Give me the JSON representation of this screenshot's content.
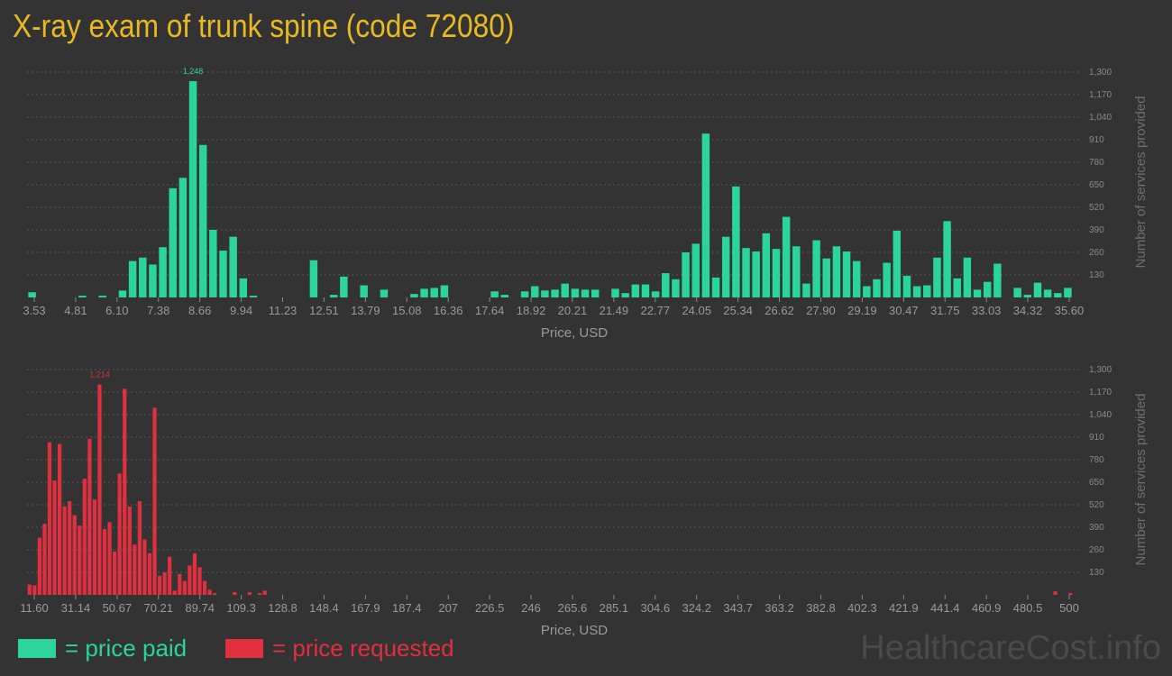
{
  "title": "X-ray exam of trunk spine (code 72080)",
  "watermark": "HealthcareCost.info",
  "legend": {
    "paid_label": "= price paid",
    "requested_label": "= price requested",
    "paid_color": "#2ad49a",
    "requested_color": "#e0303f"
  },
  "chart_data": [
    {
      "type": "bar",
      "name": "price paid",
      "color": "#2ad49a",
      "xlabel": "Price, USD",
      "ylabel": "Number of services provided",
      "ylim": [
        0,
        1300
      ],
      "yticks": [
        "130",
        "260",
        "390",
        "520",
        "650",
        "780",
        "910",
        "1,040",
        "1,170",
        "1,300"
      ],
      "xticks": [
        "3.53",
        "4.81",
        "6.10",
        "7.38",
        "8.66",
        "9.94",
        "11.23",
        "12.51",
        "13.79",
        "15.08",
        "16.36",
        "17.64",
        "18.92",
        "20.21",
        "21.49",
        "22.77",
        "24.05",
        "25.34",
        "26.62",
        "27.90",
        "29.19",
        "30.47",
        "31.75",
        "33.03",
        "34.32",
        "35.60"
      ],
      "peak_label": "1,248",
      "peak_index": 16,
      "values": [
        30,
        0,
        0,
        0,
        0,
        10,
        0,
        10,
        0,
        40,
        210,
        230,
        190,
        290,
        630,
        690,
        1248,
        880,
        390,
        270,
        350,
        110,
        10,
        0,
        0,
        0,
        0,
        0,
        215,
        0,
        15,
        120,
        0,
        70,
        0,
        45,
        0,
        0,
        20,
        50,
        55,
        70,
        0,
        0,
        0,
        0,
        35,
        15,
        0,
        35,
        65,
        40,
        45,
        80,
        50,
        45,
        45,
        0,
        50,
        25,
        75,
        75,
        35,
        140,
        105,
        260,
        310,
        945,
        115,
        350,
        640,
        285,
        265,
        370,
        280,
        465,
        295,
        80,
        330,
        225,
        295,
        265,
        210,
        65,
        105,
        200,
        385,
        125,
        65,
        70,
        230,
        440,
        110,
        230,
        45,
        90,
        195,
        0,
        55,
        15,
        85,
        45,
        25,
        55
      ]
    },
    {
      "type": "bar",
      "name": "price requested",
      "color": "#e0303f",
      "xlabel": "Price, USD",
      "ylabel": "Number of services provided",
      "ylim": [
        0,
        1300
      ],
      "yticks": [
        "130",
        "260",
        "390",
        "520",
        "650",
        "780",
        "910",
        "1,040",
        "1,170",
        "1,300"
      ],
      "xticks": [
        "11.60",
        "31.14",
        "50.67",
        "70.21",
        "89.74",
        "109.3",
        "128.8",
        "148.4",
        "167.9",
        "187.4",
        "207",
        "226.5",
        "246",
        "265.6",
        "285.1",
        "304.6",
        "324.2",
        "343.7",
        "363.2",
        "382.8",
        "402.3",
        "421.9",
        "441.4",
        "460.9",
        "480.5",
        "500"
      ],
      "peak_label": "1,214",
      "peak_index": 14,
      "values": [
        60,
        55,
        330,
        410,
        880,
        660,
        870,
        510,
        540,
        460,
        400,
        670,
        900,
        550,
        1214,
        380,
        420,
        250,
        700,
        1190,
        510,
        290,
        540,
        320,
        240,
        1080,
        110,
        130,
        220,
        25,
        120,
        80,
        170,
        240,
        160,
        80,
        30,
        10,
        0,
        0,
        0,
        15,
        0,
        0,
        15,
        0,
        10,
        25,
        0,
        0,
        0,
        0,
        0,
        0,
        0,
        0,
        0,
        0,
        0,
        0,
        0,
        0,
        0,
        0,
        0,
        0,
        0,
        0,
        0,
        0,
        0,
        0,
        0,
        0,
        0,
        0,
        0,
        0,
        0,
        0,
        0,
        0,
        0,
        0,
        0,
        0,
        0,
        0,
        0,
        0,
        0,
        0,
        0,
        0,
        0,
        0,
        0,
        0,
        0,
        0,
        0,
        0,
        0,
        0,
        0,
        0,
        0,
        0,
        0,
        0,
        0,
        0,
        0,
        0,
        0,
        0,
        0,
        0,
        0,
        0,
        0,
        0,
        0,
        0,
        0,
        0,
        0,
        0,
        0,
        0,
        0,
        0,
        0,
        0,
        0,
        0,
        0,
        0,
        0,
        0,
        0,
        0,
        0,
        0,
        0,
        0,
        0,
        0,
        0,
        0,
        0,
        0,
        0,
        0,
        0,
        0,
        0,
        0,
        0,
        0,
        0,
        0,
        0,
        0,
        0,
        0,
        0,
        0,
        0,
        0,
        0,
        0,
        0,
        0,
        0,
        0,
        0,
        0,
        0,
        0,
        0,
        0,
        0,
        0,
        0,
        0,
        0,
        0,
        0,
        0,
        0,
        0,
        0,
        0,
        0,
        0,
        0,
        0,
        0,
        0,
        0,
        0,
        0,
        0,
        0,
        20,
        0,
        0,
        10
      ]
    }
  ]
}
